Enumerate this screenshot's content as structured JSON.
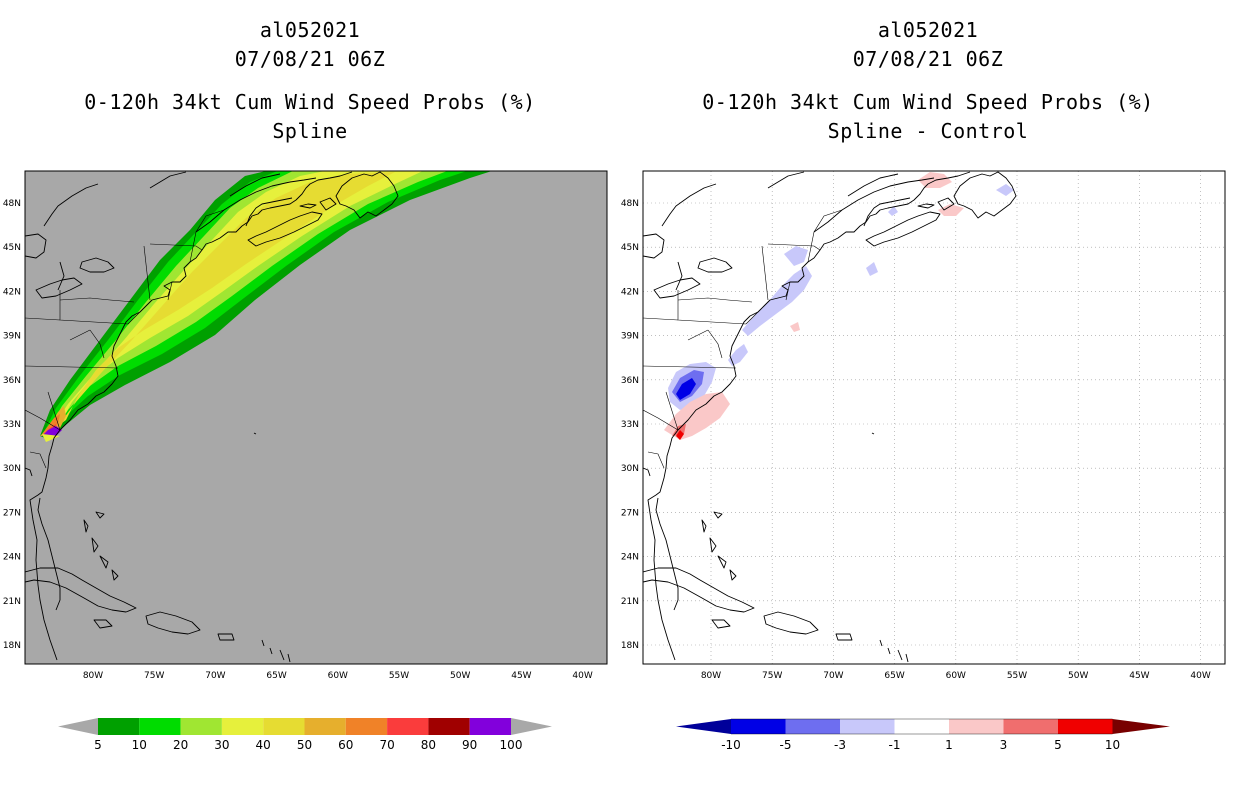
{
  "left_panel": {
    "storm_id": "al052021",
    "datetime": "07/08/21 06Z",
    "product": "0-120h 34kt Cum Wind Speed Probs (%)",
    "variant": "Spline"
  },
  "right_panel": {
    "storm_id": "al052021",
    "datetime": "07/08/21 06Z",
    "product": "0-120h 34kt Cum Wind Speed Probs (%)",
    "variant": "Spline - Control"
  },
  "axes": {
    "lon_labels": [
      "80W",
      "75W",
      "70W",
      "65W",
      "60W",
      "55W",
      "50W",
      "45W",
      "40W"
    ],
    "lat_labels": [
      "48N",
      "45N",
      "42N",
      "39N",
      "36N",
      "33N",
      "30N",
      "27N",
      "24N",
      "21N",
      "18N"
    ]
  },
  "left_colorbar": {
    "labels": [
      "5",
      "10",
      "20",
      "30",
      "40",
      "50",
      "60",
      "70",
      "80",
      "90",
      "100"
    ],
    "colors": [
      "#00a000",
      "#00dc00",
      "#a0e632",
      "#e6f03c",
      "#e6dc32",
      "#e6af2d",
      "#f08228",
      "#fa3c3c",
      "#a00000",
      "#8200dc"
    ],
    "end_color": "#a8a8a8"
  },
  "right_colorbar": {
    "labels": [
      "-10",
      "-5",
      "-3",
      "-1",
      "1",
      "3",
      "5",
      "10"
    ],
    "colors": [
      "#0000e6",
      "#6e6ef0",
      "#c8c8fa",
      "#ffffff",
      "#fac8c8",
      "#f06e6e",
      "#f00000"
    ],
    "low_end": "#00009a",
    "high_end": "#780000"
  }
}
